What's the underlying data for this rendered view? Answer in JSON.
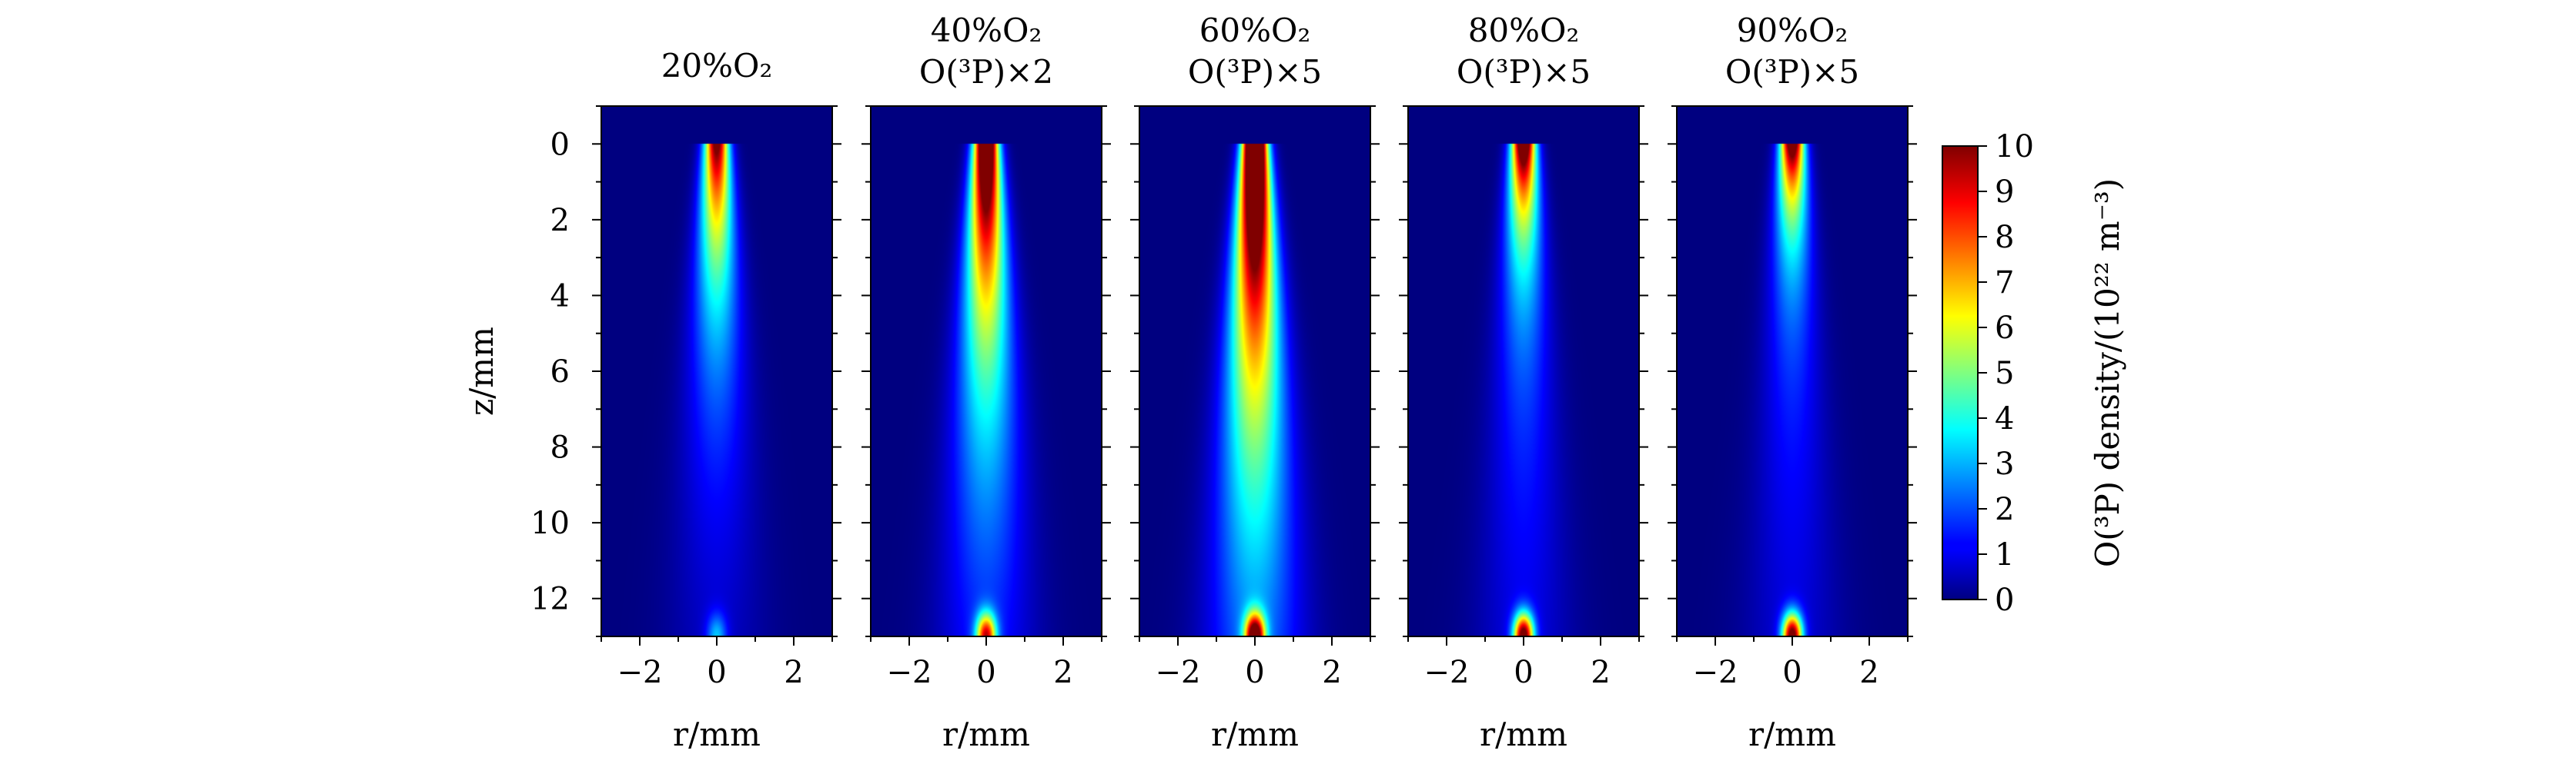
{
  "chart_data": {
    "type": "heatmap",
    "shared_y_axis": {
      "label": "z/mm",
      "ticks": [
        0,
        2,
        4,
        6,
        8,
        10,
        12
      ],
      "range": [
        -1,
        13
      ]
    },
    "shared_x_axis": {
      "label": "r/mm",
      "ticks": [
        -2,
        0,
        2
      ],
      "range": [
        -3,
        3
      ]
    },
    "colorbar": {
      "label": "O(³P) density/(10²² m⁻³)",
      "ticks": [
        0,
        1,
        2,
        3,
        4,
        5,
        6,
        7,
        8,
        9,
        10
      ],
      "range": [
        0,
        10
      ],
      "colormap": "jet"
    },
    "panels": [
      {
        "title_line1": "20%O₂",
        "title_line2": "",
        "scale_factor": 1,
        "top_intensity": 9.5,
        "top_decay_mm": 3.5,
        "column_level": 1.2,
        "bottom_level": 2.5
      },
      {
        "title_line1": "40%O₂",
        "title_line2": "O(³P)×2",
        "scale_factor": 2,
        "top_intensity": 12,
        "top_decay_mm": 4.5,
        "column_level": 2.2,
        "bottom_level": 8
      },
      {
        "title_line1": "60%O₂",
        "title_line2": "O(³P)×5",
        "scale_factor": 5,
        "top_intensity": 14,
        "top_decay_mm": 5.5,
        "column_level": 3.0,
        "bottom_level": 10
      },
      {
        "title_line1": "80%O₂",
        "title_line2": "O(³P)×5",
        "scale_factor": 5,
        "top_intensity": 10,
        "top_decay_mm": 2.0,
        "column_level": 2.5,
        "bottom_level": 10
      },
      {
        "title_line1": "90%O₂",
        "title_line2": "O(³P)×5",
        "scale_factor": 5,
        "top_intensity": 9.5,
        "top_decay_mm": 1.8,
        "column_level": 2.2,
        "bottom_level": 10
      }
    ]
  }
}
